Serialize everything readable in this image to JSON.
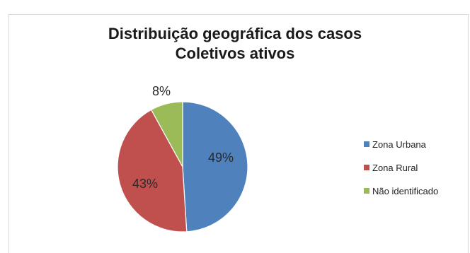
{
  "chart_data": {
    "type": "pie",
    "title": [
      "Distribuição geográfica dos casos",
      "Coletivos ativos"
    ],
    "categories": [
      "Zona Urbana",
      "Zona Rural",
      "Não identificado"
    ],
    "values": [
      49,
      43,
      8
    ],
    "data_labels": [
      "49%",
      "43%",
      "8%"
    ],
    "colors": [
      "#4f81bd",
      "#c0504d",
      "#9bbb59"
    ],
    "legend_position": "right"
  }
}
